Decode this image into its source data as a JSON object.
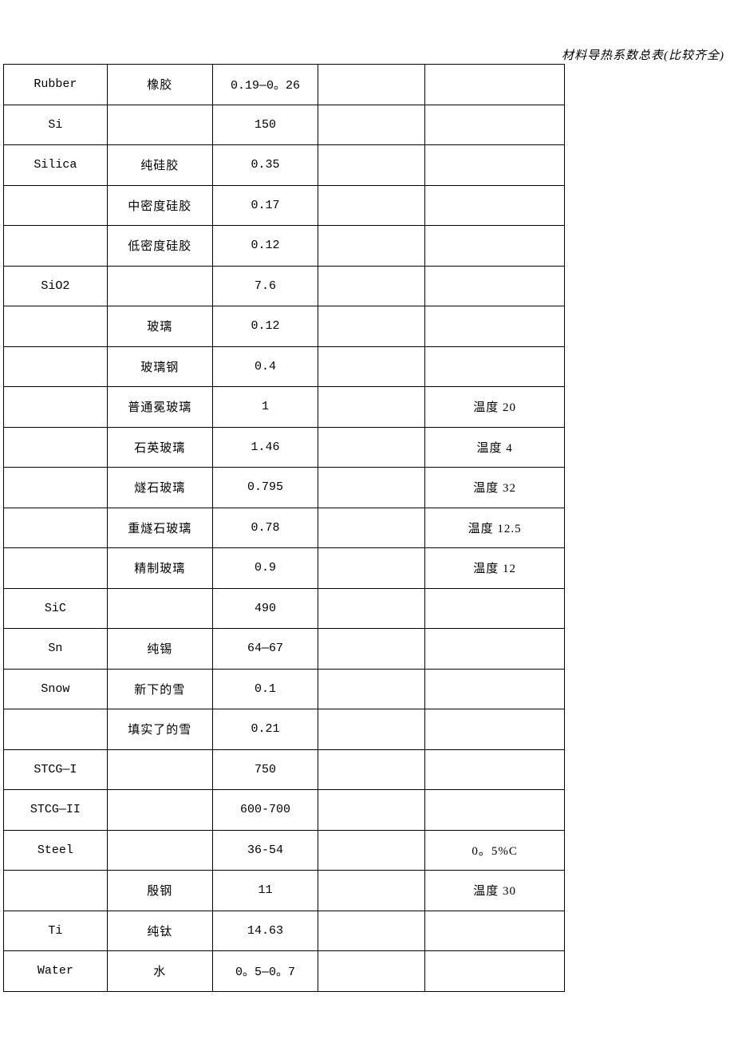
{
  "header": {
    "title": "材料导热系数总表(比较齐全)"
  },
  "table": {
    "rows": [
      {
        "c1": "Rubber",
        "c2": "橡胶",
        "c3": "0.19—0。26",
        "c4": "",
        "c5": ""
      },
      {
        "c1": "Si",
        "c2": "",
        "c3": "150",
        "c4": "",
        "c5": ""
      },
      {
        "c1": "Silica",
        "c2": "纯硅胶",
        "c3": "0.35",
        "c4": "",
        "c5": ""
      },
      {
        "c1": "",
        "c2": "中密度硅胶",
        "c3": "0.17",
        "c4": "",
        "c5": ""
      },
      {
        "c1": "",
        "c2": "低密度硅胶",
        "c3": "0.12",
        "c4": "",
        "c5": ""
      },
      {
        "c1": "SiO2",
        "c2": "",
        "c3": "7.6",
        "c4": "",
        "c5": ""
      },
      {
        "c1": "",
        "c2": "玻璃",
        "c3": "0.12",
        "c4": "",
        "c5": ""
      },
      {
        "c1": "",
        "c2": "玻璃钢",
        "c3": "0.4",
        "c4": "",
        "c5": ""
      },
      {
        "c1": "",
        "c2": "普通冕玻璃",
        "c3": "1",
        "c4": "",
        "c5": "温度 20"
      },
      {
        "c1": "",
        "c2": "石英玻璃",
        "c3": "1.46",
        "c4": "",
        "c5": "温度 4"
      },
      {
        "c1": "",
        "c2": "燧石玻璃",
        "c3": "0.795",
        "c4": "",
        "c5": "温度 32"
      },
      {
        "c1": "",
        "c2": "重燧石玻璃",
        "c3": "0.78",
        "c4": "",
        "c5": "温度 12.5"
      },
      {
        "c1": "",
        "c2": "精制玻璃",
        "c3": "0.9",
        "c4": "",
        "c5": "温度 12"
      },
      {
        "c1": "SiC",
        "c2": "",
        "c3": "490",
        "c4": "",
        "c5": ""
      },
      {
        "c1": "Sn",
        "c2": "纯锡",
        "c3": "64—67",
        "c4": "",
        "c5": ""
      },
      {
        "c1": "Snow",
        "c2": "新下的雪",
        "c3": "0.1",
        "c4": "",
        "c5": ""
      },
      {
        "c1": "",
        "c2": "填实了的雪",
        "c3": "0.21",
        "c4": "",
        "c5": ""
      },
      {
        "c1": "STCG—I",
        "c2": "",
        "c3": "750",
        "c4": "",
        "c5": ""
      },
      {
        "c1": "STCG—II",
        "c2": "",
        "c3": "600-700",
        "c4": "",
        "c5": ""
      },
      {
        "c1": "Steel",
        "c2": "",
        "c3": "36-54",
        "c4": "",
        "c5": "0。5%C"
      },
      {
        "c1": "",
        "c2": "殷钢",
        "c3": "11",
        "c4": "",
        "c5": "温度 30"
      },
      {
        "c1": "Ti",
        "c2": "纯钛",
        "c3": "14.63",
        "c4": "",
        "c5": ""
      },
      {
        "c1": "Water",
        "c2": "水",
        "c3": "0。5—0。7",
        "c4": "",
        "c5": ""
      }
    ]
  }
}
